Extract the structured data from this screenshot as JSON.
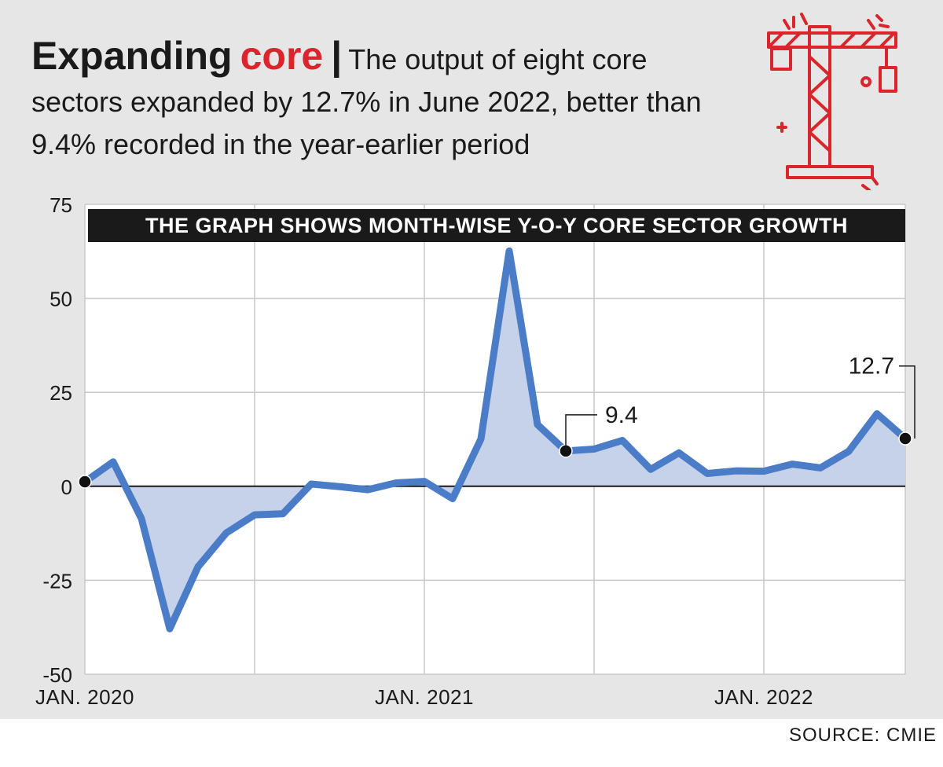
{
  "header": {
    "title_word1": "Expanding",
    "title_word2": "core",
    "separator": "|",
    "subtitle": "The output of eight core sectors expanded by 12.7% in June 2022, better than 9.4% recorded in the year-earlier period",
    "icon": "crane-icon"
  },
  "source": "SOURCE: CMIE",
  "colors": {
    "line": "#4a7cc7",
    "fill": "#c5d2ea",
    "accent": "#d9252b",
    "band": "#1a1a1a",
    "background": "#e6e6e6"
  },
  "chart_data": {
    "type": "area",
    "title": "THE GRAPH SHOWS MONTH-WISE Y-O-Y CORE SECTOR GROWTH",
    "xlabel": "",
    "ylabel": "",
    "ylim": [
      -50,
      75
    ],
    "yticks": [
      75,
      50,
      25,
      0,
      -25,
      -50
    ],
    "xticks": [
      {
        "index": 0,
        "label": "JAN. 2020"
      },
      {
        "index": 12,
        "label": "JAN. 2021"
      },
      {
        "index": 24,
        "label": "JAN. 2022"
      }
    ],
    "grid": true,
    "x": [
      "2020-01",
      "2020-02",
      "2020-03",
      "2020-04",
      "2020-05",
      "2020-06",
      "2020-07",
      "2020-08",
      "2020-09",
      "2020-10",
      "2020-11",
      "2020-12",
      "2021-01",
      "2021-02",
      "2021-03",
      "2021-04",
      "2021-05",
      "2021-06",
      "2021-07",
      "2021-08",
      "2021-09",
      "2021-10",
      "2021-11",
      "2021-12",
      "2022-01",
      "2022-02",
      "2022-03",
      "2022-04",
      "2022-05",
      "2022-06"
    ],
    "values": [
      1.2,
      6.5,
      -8.6,
      -37.9,
      -21.4,
      -12.4,
      -7.6,
      -7.3,
      0.6,
      -0.1,
      -0.9,
      0.9,
      1.3,
      -3.3,
      12.6,
      62.6,
      16.4,
      9.4,
      9.9,
      12.2,
      4.5,
      8.9,
      3.4,
      4.1,
      4.0,
      5.9,
      4.9,
      9.3,
      19.3,
      12.7
    ],
    "annotations": [
      {
        "index": 17,
        "label": "9.4"
      },
      {
        "index": 29,
        "label": "12.7"
      }
    ]
  }
}
